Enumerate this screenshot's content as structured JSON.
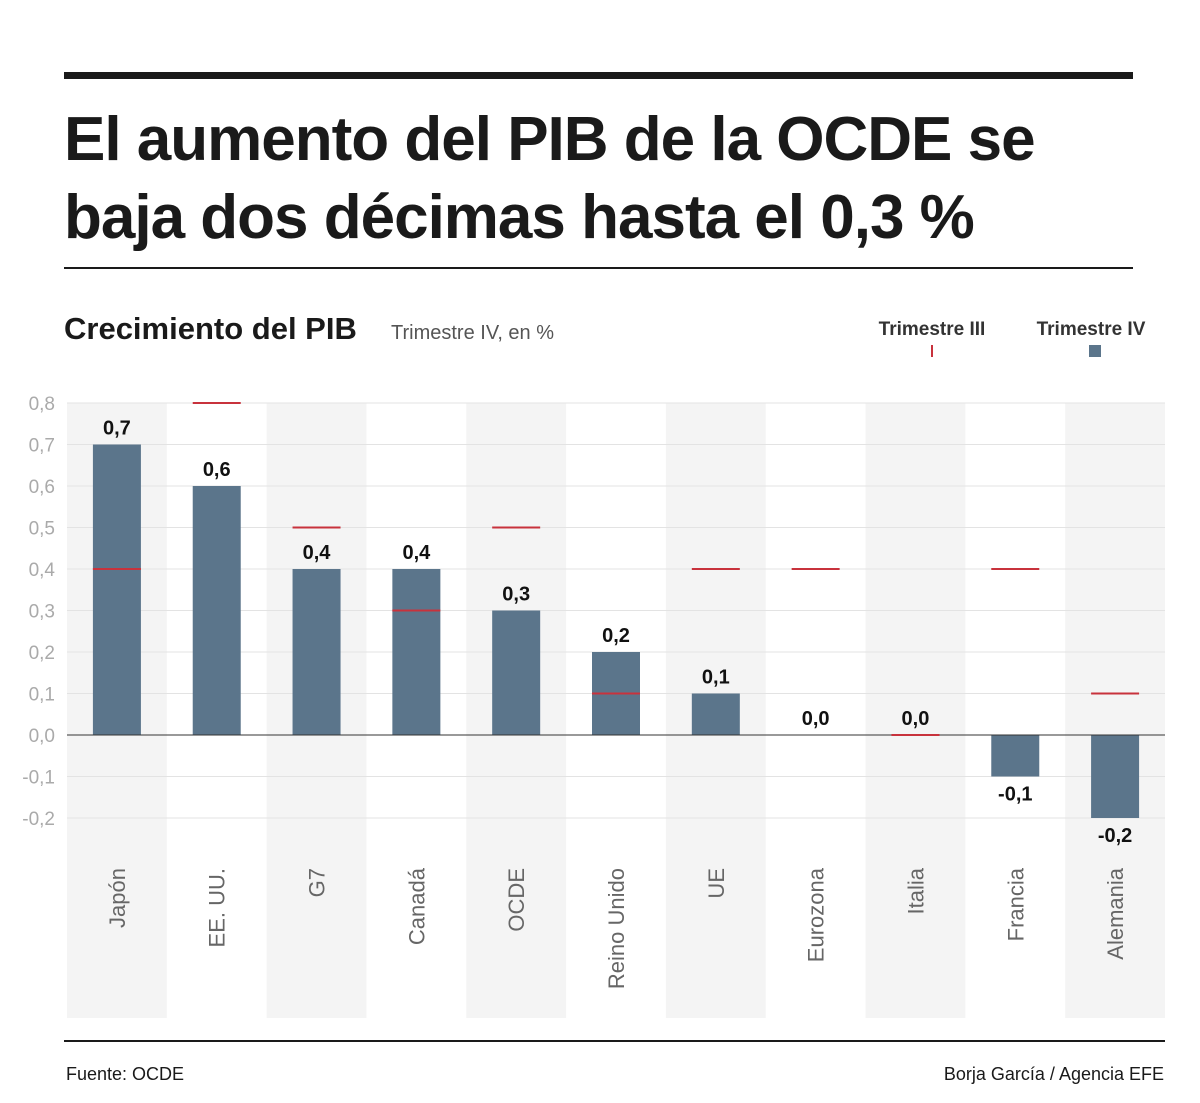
{
  "header": {
    "title_line1": "El aumento del PIB de la OCDE se",
    "title_line2": "baja dos décimas hasta el 0,3 %"
  },
  "footer": {
    "source": "Fuente: OCDE",
    "credit": "Borja García / Agencia EFE"
  },
  "chart_data": {
    "type": "bar",
    "title": "Crecimiento del PIB",
    "subtitle": "Trimestre IV, en %",
    "categories": [
      "Japón",
      "EE. UU.",
      "G7",
      "Canadá",
      "OCDE",
      "Reino Unido",
      "UE",
      "Eurozona",
      "Italia",
      "Francia",
      "Alemania"
    ],
    "series": [
      {
        "name": "Trimestre IV",
        "mark": "bar",
        "color": "#5b758b",
        "values": [
          0.7,
          0.6,
          0.4,
          0.4,
          0.3,
          0.2,
          0.1,
          0.0,
          0.0,
          -0.1,
          -0.2
        ],
        "labels": [
          "0,7",
          "0,6",
          "0,4",
          "0,4",
          "0,3",
          "0,2",
          "0,1",
          "0,0",
          "0,0",
          "-0,1",
          "-0,2"
        ]
      },
      {
        "name": "Trimestre III",
        "mark": "tick",
        "color": "#c8323c",
        "values": [
          0.4,
          0.8,
          0.5,
          0.3,
          0.5,
          0.1,
          0.4,
          0.4,
          0.0,
          0.4,
          0.1
        ]
      }
    ],
    "ylim": [
      -0.2,
      0.8
    ],
    "yticks": [
      0.8,
      0.7,
      0.6,
      0.5,
      0.4,
      0.3,
      0.2,
      0.1,
      0.0,
      -0.1,
      -0.2
    ],
    "ytick_labels": [
      "0,8",
      "0,7",
      "0,6",
      "0,5",
      "0,4",
      "0,3",
      "0,2",
      "0,1",
      "0,0",
      "-0,1",
      "-0,2"
    ],
    "grid": true,
    "legend_position": "top-right"
  }
}
